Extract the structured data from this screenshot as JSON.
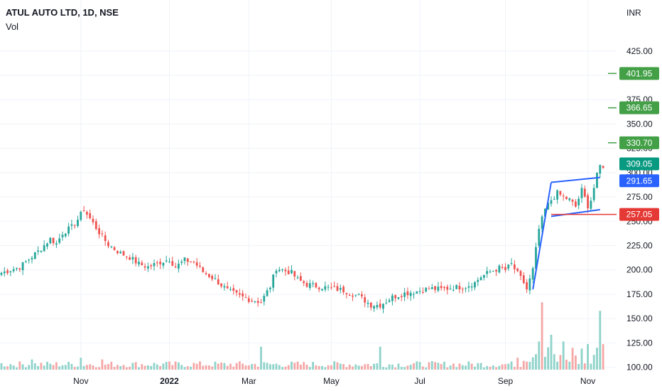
{
  "header": {
    "symbol_title": "ATUL AUTO LTD, 1D, NSE",
    "volume_label": "Vol"
  },
  "colors": {
    "up": "#26a69a",
    "down": "#ef5350",
    "vol_up": "#8fd3ca",
    "vol_down": "#f4a7a6",
    "grid": "#f0f3fa",
    "pattern": "#2962ff",
    "target": "#43a047",
    "stop": "#e53935",
    "last_price": "#089981"
  },
  "chart_data": {
    "type": "candlestick",
    "title": "ATUL AUTO LTD, 1D, NSE",
    "currency": "INR",
    "y_ticks": [
      "100.00",
      "125.00",
      "150.00",
      "175.00",
      "200.00",
      "225.00",
      "250.00",
      "275.00",
      "300.00",
      "325.00",
      "350.00",
      "375.00",
      "400.00",
      "425.00"
    ],
    "x_ticks": [
      "Nov",
      "2022",
      "Mar",
      "May",
      "Jul",
      "Sep",
      "Nov"
    ],
    "x_ticks_bold": [
      false,
      true,
      false,
      false,
      false,
      false,
      false
    ],
    "price_tags": [
      {
        "label": "401.95",
        "value": 401.95,
        "kind": "target"
      },
      {
        "label": "366.65",
        "value": 366.65,
        "kind": "target"
      },
      {
        "label": "330.70",
        "value": 330.7,
        "kind": "target"
      },
      {
        "label": "309.05",
        "value": 309.05,
        "kind": "last"
      },
      {
        "label": "291.65",
        "value": 291.65,
        "kind": "pattern"
      },
      {
        "label": "257.05",
        "value": 257.05,
        "kind": "stop"
      }
    ],
    "close_series": [
      [
        0,
        197
      ],
      [
        6,
        203
      ],
      [
        12,
        219
      ],
      [
        16,
        232
      ],
      [
        18,
        227
      ],
      [
        20,
        238
      ],
      [
        23,
        244
      ],
      [
        25,
        252
      ],
      [
        27,
        262
      ],
      [
        30,
        248
      ],
      [
        33,
        234
      ],
      [
        35,
        226
      ],
      [
        39,
        217
      ],
      [
        42,
        213
      ],
      [
        45,
        206
      ],
      [
        48,
        203
      ],
      [
        52,
        208
      ],
      [
        55,
        211
      ],
      [
        57,
        203
      ],
      [
        60,
        210
      ],
      [
        63,
        208
      ],
      [
        66,
        198
      ],
      [
        70,
        190
      ],
      [
        74,
        179
      ],
      [
        78,
        173
      ],
      [
        81,
        170
      ],
      [
        85,
        167
      ],
      [
        88,
        183
      ],
      [
        90,
        202
      ],
      [
        93,
        199
      ],
      [
        95,
        197
      ],
      [
        97,
        190
      ],
      [
        100,
        185
      ],
      [
        104,
        183
      ],
      [
        108,
        181
      ],
      [
        112,
        179
      ],
      [
        117,
        173
      ],
      [
        121,
        164
      ],
      [
        124,
        164
      ],
      [
        128,
        172
      ],
      [
        132,
        176
      ],
      [
        136,
        178
      ],
      [
        140,
        181
      ],
      [
        144,
        180
      ],
      [
        148,
        182
      ],
      [
        152,
        183
      ],
      [
        155,
        187
      ],
      [
        157,
        193
      ],
      [
        160,
        198
      ],
      [
        163,
        202
      ],
      [
        165,
        200
      ],
      [
        167,
        206
      ],
      [
        169,
        196
      ],
      [
        171,
        187
      ],
      [
        172,
        180
      ],
      [
        174,
        200
      ],
      [
        176,
        242
      ],
      [
        178,
        262
      ],
      [
        180,
        272
      ],
      [
        182,
        279
      ],
      [
        184,
        275
      ],
      [
        186,
        272
      ],
      [
        188,
        265
      ],
      [
        190,
        282
      ],
      [
        192,
        266
      ],
      [
        193,
        272
      ],
      [
        195,
        297
      ],
      [
        196,
        307
      ]
    ],
    "volume_peaks": [
      [
        10,
        12,
        1
      ],
      [
        33,
        12,
        0
      ],
      [
        26,
        14,
        1
      ],
      [
        124,
        27,
        1
      ],
      [
        85,
        27,
        1
      ],
      [
        166,
        7,
        1
      ],
      [
        169,
        14,
        0
      ],
      [
        176,
        33,
        1
      ],
      [
        177,
        79,
        0
      ],
      [
        178,
        15,
        1
      ],
      [
        180,
        41,
        1
      ],
      [
        184,
        33,
        1
      ],
      [
        192,
        30,
        1
      ],
      [
        196,
        69,
        1
      ]
    ],
    "pattern_lines": [
      [
        [
          174,
          180
        ],
        [
          180,
          290
        ]
      ],
      [
        [
          180,
          255
        ],
        [
          196,
          262
        ]
      ],
      [
        [
          180,
          290
        ],
        [
          196,
          295
        ]
      ]
    ],
    "y_range_visible": [
      100,
      425
    ],
    "grid": true
  }
}
